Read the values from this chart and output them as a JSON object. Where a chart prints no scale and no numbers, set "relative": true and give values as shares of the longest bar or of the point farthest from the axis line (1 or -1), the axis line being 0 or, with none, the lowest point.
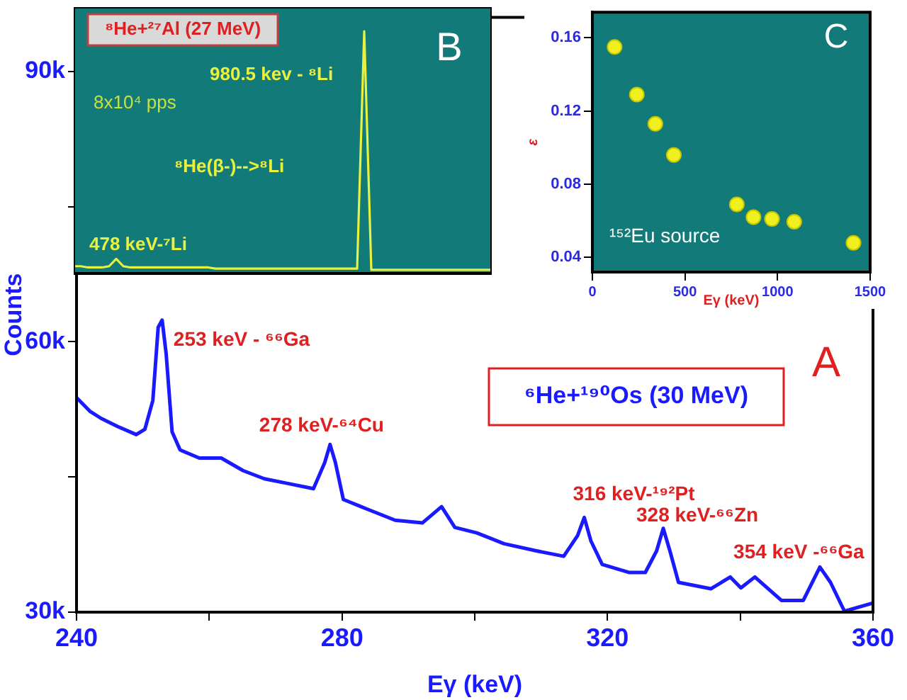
{
  "chart_data": [
    {
      "type": "line",
      "xlabel": "Eγ (keV)",
      "ylabel": "Counts",
      "marker": "none",
      "xlim": [
        240,
        360
      ],
      "xticks": [
        240,
        {
          "value": 260,
          "label": null
        },
        280,
        {
          "value": 300,
          "label": null
        },
        320,
        {
          "value": 340,
          "label": null
        },
        360
      ],
      "ylim": [
        30000,
        96000
      ],
      "yticks": [
        {
          "value": 30000,
          "label": "30k"
        },
        {
          "value": 45000,
          "label": null
        },
        {
          "value": 60000,
          "label": "60k"
        },
        {
          "value": 75000,
          "label": null
        },
        {
          "value": 90000,
          "label": "90k"
        }
      ],
      "series": [
        {
          "color": "#1a1aff",
          "x": [
            240,
            242,
            243.7,
            246.2,
            249,
            250.3,
            251.5,
            252.3,
            252.9,
            253.5,
            254.4,
            255.6,
            258.5,
            261.8,
            265.1,
            268.3,
            271.7,
            275.7,
            277.4,
            278.2,
            279,
            280.2,
            283.9,
            288,
            292.1,
            295,
            297,
            300.3,
            304.4,
            309.3,
            313.4,
            315.5,
            316.5,
            317.5,
            319.2,
            323.3,
            325.7,
            327.4,
            328.4,
            329.4,
            330.7,
            335.6,
            338.5,
            340.1,
            342.2,
            346.2,
            349.5,
            352,
            353.6,
            355.7,
            359.9
          ],
          "values": [
            53800,
            52300,
            51500,
            50600,
            49700,
            50300,
            53500,
            61600,
            62400,
            58700,
            50000,
            48000,
            47100,
            47100,
            45700,
            44800,
            44300,
            43700,
            46600,
            48600,
            46600,
            42500,
            41400,
            40200,
            39900,
            41700,
            39400,
            38800,
            37600,
            36800,
            36200,
            38500,
            40500,
            37900,
            35300,
            34400,
            34400,
            36800,
            39300,
            36800,
            33300,
            32600,
            33900,
            32700,
            33900,
            31300,
            31300,
            35000,
            33300,
            30100,
            31000
          ]
        }
      ],
      "annotations": [
        {
          "text": "253 keV - ⁶⁶Ga",
          "x": 252.9,
          "y": 62400
        },
        {
          "text": "278 keV-⁶⁴Cu",
          "x": 278.2,
          "y": 48600
        },
        {
          "text": "316 keV-¹⁹²Pt",
          "x": 316.5,
          "y": 40500
        },
        "328 keV-⁶⁶Zn",
        {
          "text": "354 keV -⁶⁶Ga",
          "x": 352,
          "y": 35000
        },
        "⁶He+¹⁹⁰Os (30 MeV)",
        "A"
      ]
    },
    {
      "type": "line",
      "relative": true,
      "marker": "none",
      "categories": [
        null,
        null,
        null,
        null,
        null,
        null,
        null,
        null,
        null,
        null,
        null,
        null,
        null,
        null,
        null,
        null,
        null,
        null,
        null,
        null,
        null,
        null,
        null,
        null,
        null,
        null,
        null,
        null,
        null,
        null,
        null,
        null,
        null,
        null,
        null,
        null,
        null,
        null,
        null,
        null,
        null,
        null,
        null,
        null,
        null,
        null,
        null,
        null,
        null,
        null,
        null,
        null,
        null,
        null,
        null,
        null,
        null,
        null,
        null,
        null
      ],
      "series": [
        {
          "color": "#e8f040",
          "values": [
            0.03,
            0.03,
            0.025,
            0.025,
            0.025,
            0.03,
            0.06,
            0.03,
            0.025,
            0.025,
            0.025,
            0.025,
            0.025,
            0.025,
            0.025,
            0.025,
            0.025,
            0.025,
            0.025,
            0.025,
            0.02,
            0.02,
            0.02,
            0.02,
            0.02,
            0.02,
            0.02,
            0.02,
            0.02,
            0.02,
            0.02,
            0.02,
            0.02,
            0.02,
            0.02,
            0.02,
            0.02,
            0.02,
            0.02,
            0.02,
            0.02,
            1,
            0.015,
            0.015,
            0.015,
            0.015,
            0.015,
            0.015,
            0.015,
            0.015,
            0.015,
            0.015,
            0.015,
            0.015,
            0.015,
            0.015,
            0.015,
            0.015,
            0.015,
            0.015
          ]
        }
      ],
      "annotations": [
        "⁸He+²⁷Al (27 MeV)",
        "980.5 kev - ⁸Li",
        "8x10⁴ pps",
        "⁸He(β-)-->⁸Li",
        "478 keV-⁷Li",
        "B"
      ]
    },
    {
      "type": "scatter",
      "xlabel": "Eγ (keV)",
      "ylabel": "ε",
      "marker": "circle",
      "xlim": [
        0,
        1500
      ],
      "xticks": [
        0,
        500,
        1000,
        1500
      ],
      "ylim": [
        0.032,
        0.174
      ],
      "yticks": [
        0.04,
        0.08,
        0.12,
        0.16
      ],
      "series": [
        {
          "color": "#f0f020",
          "x": [
            120,
            240,
            340,
            440,
            780,
            870,
            970,
            1090,
            1410
          ],
          "values": [
            0.155,
            0.129,
            0.113,
            0.096,
            0.069,
            0.062,
            0.061,
            0.0595,
            0.048
          ]
        }
      ],
      "annotations": [
        "C",
        "¹⁵²Eu source"
      ]
    }
  ]
}
